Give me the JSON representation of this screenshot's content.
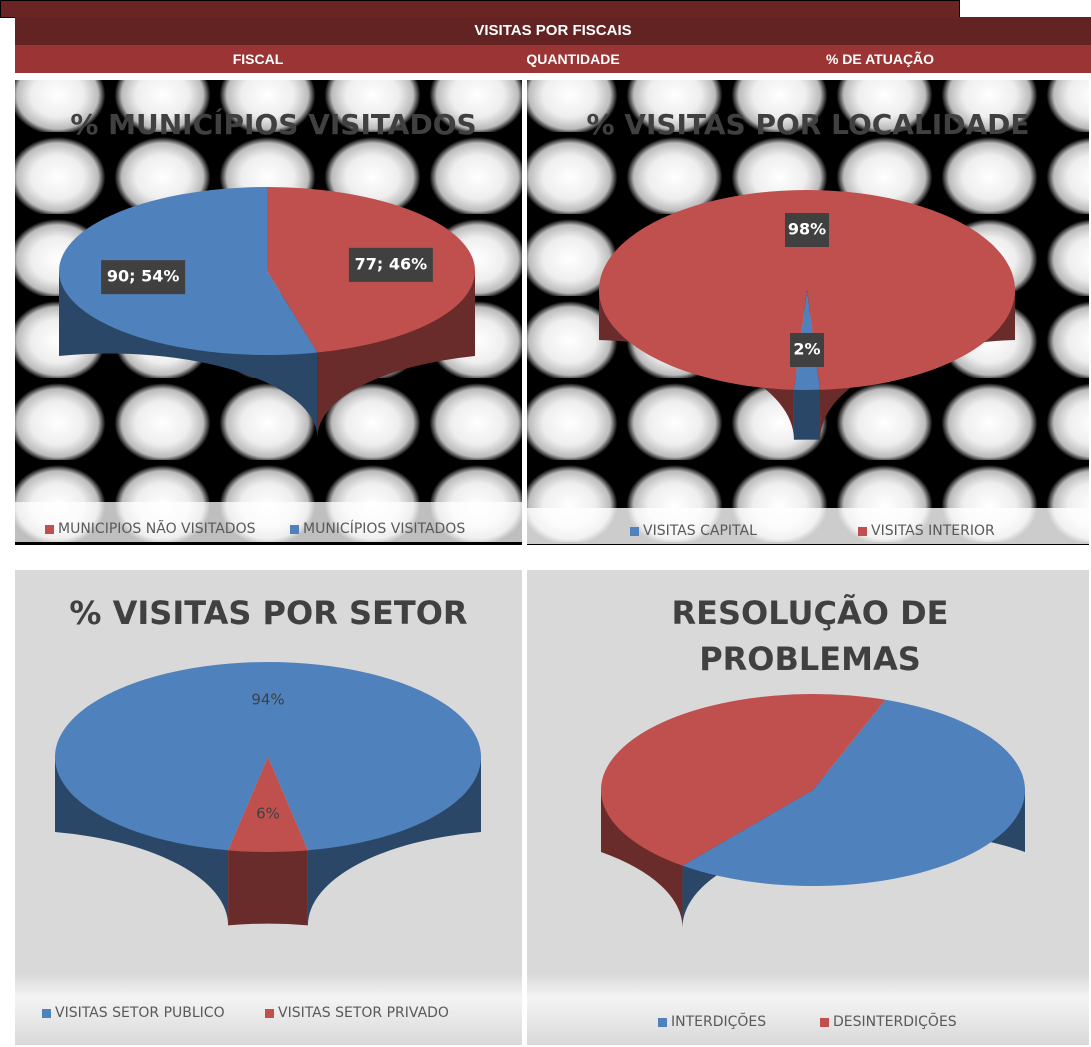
{
  "header": {
    "title": "VISITAS POR FISCAIS",
    "columns": [
      "FISCAL",
      "QUANTIDADE",
      "% DE ATUAÇÃO"
    ]
  },
  "chart_data": [
    {
      "type": "pie",
      "title": "% MUNICÍPIOS VISITADOS",
      "categories": [
        "MUNICIPIOS NÃO VISITADOS",
        "MUNICÍPIOS VISITADOS"
      ],
      "values": [
        77,
        90
      ],
      "value_labels": [
        "77; 46%",
        "90; 54%"
      ],
      "colors": [
        "#c0504d",
        "#4f81bd"
      ]
    },
    {
      "type": "pie",
      "title": "% VISITAS POR LOCALIDADE",
      "categories": [
        "VISITAS CAPITAL",
        "VISITAS INTERIOR"
      ],
      "values": [
        2,
        98
      ],
      "value_labels": [
        "2%",
        "98%"
      ],
      "colors": [
        "#4f81bd",
        "#c0504d"
      ]
    },
    {
      "type": "pie",
      "title": "% VISITAS POR SETOR",
      "categories": [
        "VISITAS SETOR PUBLICO",
        "VISITAS SETOR PRIVADO"
      ],
      "values": [
        94,
        6
      ],
      "value_labels": [
        "94%",
        "6%"
      ],
      "colors": [
        "#4f81bd",
        "#c0504d"
      ]
    },
    {
      "type": "pie",
      "title": "RESOLUÇÃO DE PROBLEMAS",
      "categories": [
        "INTERDIÇÕES",
        "DESINTERDIÇÕES"
      ],
      "values": [
        55,
        45
      ],
      "colors": [
        "#4f81bd",
        "#c0504d"
      ]
    }
  ]
}
